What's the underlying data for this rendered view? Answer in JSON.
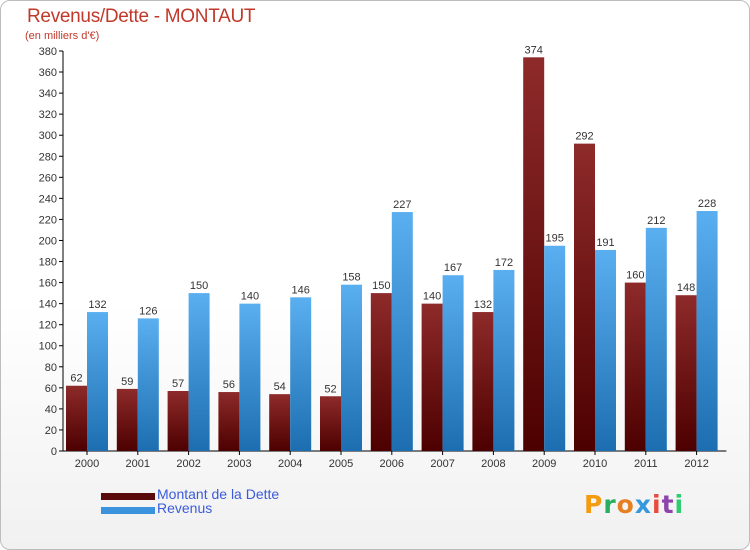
{
  "chart_data": {
    "type": "bar",
    "title": "Revenus/Dette - MONTAUT",
    "subtitle": "(en milliers d'€)",
    "categories": [
      "2000",
      "2001",
      "2002",
      "2003",
      "2004",
      "2005",
      "2006",
      "2007",
      "2008",
      "2009",
      "2010",
      "2011",
      "2012"
    ],
    "series": [
      {
        "name": "Montant de la Dette",
        "values": [
          62,
          59,
          57,
          56,
          54,
          52,
          150,
          140,
          132,
          374,
          292,
          160,
          148
        ]
      },
      {
        "name": "Revenus",
        "values": [
          132,
          126,
          150,
          140,
          146,
          158,
          227,
          167,
          172,
          195,
          191,
          212,
          228
        ]
      }
    ],
    "ylim": [
      0,
      380
    ],
    "ytick_step": 20,
    "grid": false,
    "legend_position": "bottom-left"
  },
  "colors": {
    "dette_dark": "#4d0000",
    "dette_light": "#8e2a2a",
    "revenus_dark": "#1c6eb0",
    "revenus_light": "#5aaff0",
    "title": "#c0392b",
    "legend_text": "#3b5bdb"
  },
  "logo_text": "Proxiti"
}
